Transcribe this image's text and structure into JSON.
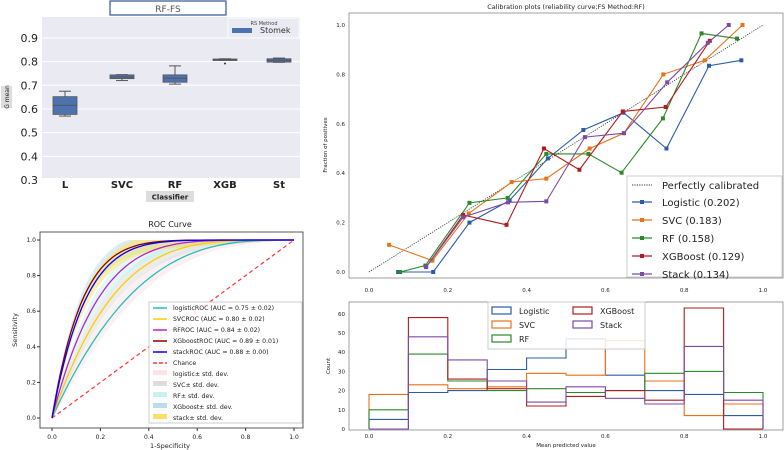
{
  "chart_data": [
    {
      "type": "box",
      "title": "RF-FS",
      "xlabel": "Classifier",
      "ylabel": "G mean",
      "ylim": [
        0.3,
        0.98
      ],
      "yticks": [
        "0.3",
        "0.4",
        "0.5",
        "0.6",
        "0.7",
        "0.8",
        "0.9"
      ],
      "legend": {
        "title": "RS Method",
        "entries": [
          "Stomek"
        ],
        "placement": "top-right"
      },
      "color": "#4c72b0",
      "categories": [
        "L",
        "SVC",
        "RF",
        "XGB",
        "St"
      ],
      "boxes": [
        {
          "min": 0.57,
          "q1": 0.577,
          "median": 0.615,
          "q3": 0.652,
          "max": 0.675,
          "outliers": []
        },
        {
          "min": 0.72,
          "q1": 0.728,
          "median": 0.735,
          "q3": 0.744,
          "max": 0.745,
          "outliers": []
        },
        {
          "min": 0.705,
          "q1": 0.713,
          "median": 0.73,
          "q3": 0.744,
          "max": 0.782,
          "outliers": []
        },
        {
          "min": 0.806,
          "q1": 0.806,
          "median": 0.809,
          "q3": 0.811,
          "max": 0.812,
          "outliers": [
            0.792
          ]
        },
        {
          "min": 0.797,
          "q1": 0.798,
          "median": 0.806,
          "q3": 0.812,
          "max": 0.815,
          "outliers": []
        }
      ]
    },
    {
      "type": "line",
      "title": "ROC Curve",
      "xlabel": "1-Specificity",
      "ylabel": "Sensitivity",
      "xlim": [
        0,
        1
      ],
      "ylim": [
        0,
        1
      ],
      "ticks": [
        "0.0",
        "0.2",
        "0.4",
        "0.6",
        "0.8",
        "1.0"
      ],
      "legend_placement": "lower-right",
      "series": [
        {
          "name": "logisticROC (AUC = 0.75 ± 0.02)",
          "auc": 0.75,
          "std": 0.02,
          "color": "#20c0c0"
        },
        {
          "name": "SVCROC (AUC = 0.80 ± 0.02)",
          "auc": 0.8,
          "std": 0.02,
          "color": "#ffcc00"
        },
        {
          "name": "RFROC (AUC = 0.84 ± 0.02)",
          "auc": 0.84,
          "std": 0.02,
          "color": "#c020c0"
        },
        {
          "name": "XGboostROC (AUC = 0.89 ± 0.01)",
          "auc": 0.89,
          "std": 0.01,
          "color": "#8b0000"
        },
        {
          "name": "stackROC (AUC = 0.88 ± 0.00)",
          "auc": 0.88,
          "std": 0.0,
          "color": "#0000ff"
        }
      ],
      "chance": {
        "name": "Chance",
        "color": "#ff3333"
      },
      "bands": [
        {
          "name": "logistic± std. dev.",
          "color": "#fde3e3"
        },
        {
          "name": "SVC± std. dev.",
          "color": "#dddddd"
        },
        {
          "name": "RF± std. dev.",
          "color": "#c8f2f2"
        },
        {
          "name": "XGboost± std. dev.",
          "color": "#b8def0"
        },
        {
          "name": "stack± std. dev.",
          "color": "#ffe066"
        }
      ]
    },
    {
      "type": "line",
      "title": "Calibration plots  (reliability curve;FS Method:RF)",
      "ylabel": "Fraction of positives",
      "xlim": [
        0,
        1
      ],
      "ylim": [
        0,
        1
      ],
      "xticks": [
        "0.0",
        "0.2",
        "0.4",
        "0.6",
        "0.8",
        "1.0"
      ],
      "yticks": [
        "0.0",
        "0.2",
        "0.4",
        "0.6",
        "0.8",
        "1.0"
      ],
      "reference": "Perfectly calibrated",
      "legend_placement": "lower-right",
      "series": [
        {
          "name": "Logistic (0.202)",
          "color": "#2a5caa",
          "x": [
            0.074,
            0.163,
            0.255,
            0.357,
            0.454,
            0.544,
            0.646,
            0.755,
            0.863,
            0.945
          ],
          "y": [
            0,
            0,
            0.2,
            0.29,
            0.46,
            0.575,
            0.645,
            0.5,
            0.835,
            0.857
          ]
        },
        {
          "name": "SVC (0.183)",
          "color": "#e8711a",
          "x": [
            0.051,
            0.161,
            0.253,
            0.362,
            0.45,
            0.56,
            0.647,
            0.747,
            0.852,
            0.948
          ],
          "y": [
            0.11,
            0.046,
            0.237,
            0.364,
            0.378,
            0.5,
            0.562,
            0.8,
            0.857,
            1.0
          ]
        },
        {
          "name": "RF (0.158)",
          "color": "#2a8a2a",
          "x": [
            0.079,
            0.143,
            0.255,
            0.352,
            0.45,
            0.557,
            0.641,
            0.746,
            0.844,
            0.934
          ],
          "y": [
            0,
            0.026,
            0.28,
            0.3,
            0.478,
            0.478,
            0.402,
            0.622,
            0.966,
            0.945
          ]
        },
        {
          "name": "XGBoost (0.129)",
          "color": "#b01c1c",
          "x": [
            0.145,
            0.239,
            0.349,
            0.444,
            0.534,
            0.644,
            0.753,
            0.865
          ],
          "y": [
            0.02,
            0.231,
            0.191,
            0.5,
            0.414,
            0.65,
            0.668,
            0.936
          ]
        },
        {
          "name": "Stack (0.134)",
          "color": "#7b4aa8",
          "x": [
            0.145,
            0.239,
            0.353,
            0.45,
            0.548,
            0.647,
            0.757,
            0.86,
            0.913
          ],
          "y": [
            0.02,
            0.222,
            0.282,
            0.286,
            0.546,
            0.562,
            0.768,
            0.928,
            1.0
          ]
        }
      ]
    },
    {
      "type": "histogram",
      "xlabel": "Mean predicted value",
      "ylabel": "Count",
      "bins": [
        0,
        0.1,
        0.2,
        0.3,
        0.4,
        0.5,
        0.6,
        0.7,
        0.8,
        0.9,
        1.0
      ],
      "xticks": [
        "0.0",
        "0.2",
        "0.4",
        "0.6",
        "0.8",
        "1.0"
      ],
      "yticks": [
        "0",
        "10",
        "20",
        "30",
        "40",
        "50",
        "60"
      ],
      "ylim": [
        0,
        66
      ],
      "legend_placement": "top-center",
      "series": [
        {
          "name": "Logistic",
          "color": "#2a5caa",
          "values": [
            5,
            19,
            20,
            31,
            37,
            47,
            28,
            20,
            18,
            7
          ]
        },
        {
          "name": "SVC",
          "color": "#e8711a",
          "values": [
            18,
            23,
            21,
            22,
            29,
            28,
            46,
            25,
            7,
            13
          ]
        },
        {
          "name": "RF",
          "color": "#2a8a2a",
          "values": [
            10,
            39,
            25,
            20,
            21,
            19,
            20,
            29,
            30,
            19
          ]
        },
        {
          "name": "XGBoost",
          "color": "#b01c1c",
          "values": [
            0,
            58,
            26,
            21,
            12,
            17,
            20,
            15,
            63,
            0
          ]
        },
        {
          "name": "Stack",
          "color": "#7b4aa8",
          "values": [
            0,
            48,
            36,
            25,
            14,
            22,
            16,
            13,
            43,
            15
          ]
        }
      ]
    }
  ]
}
